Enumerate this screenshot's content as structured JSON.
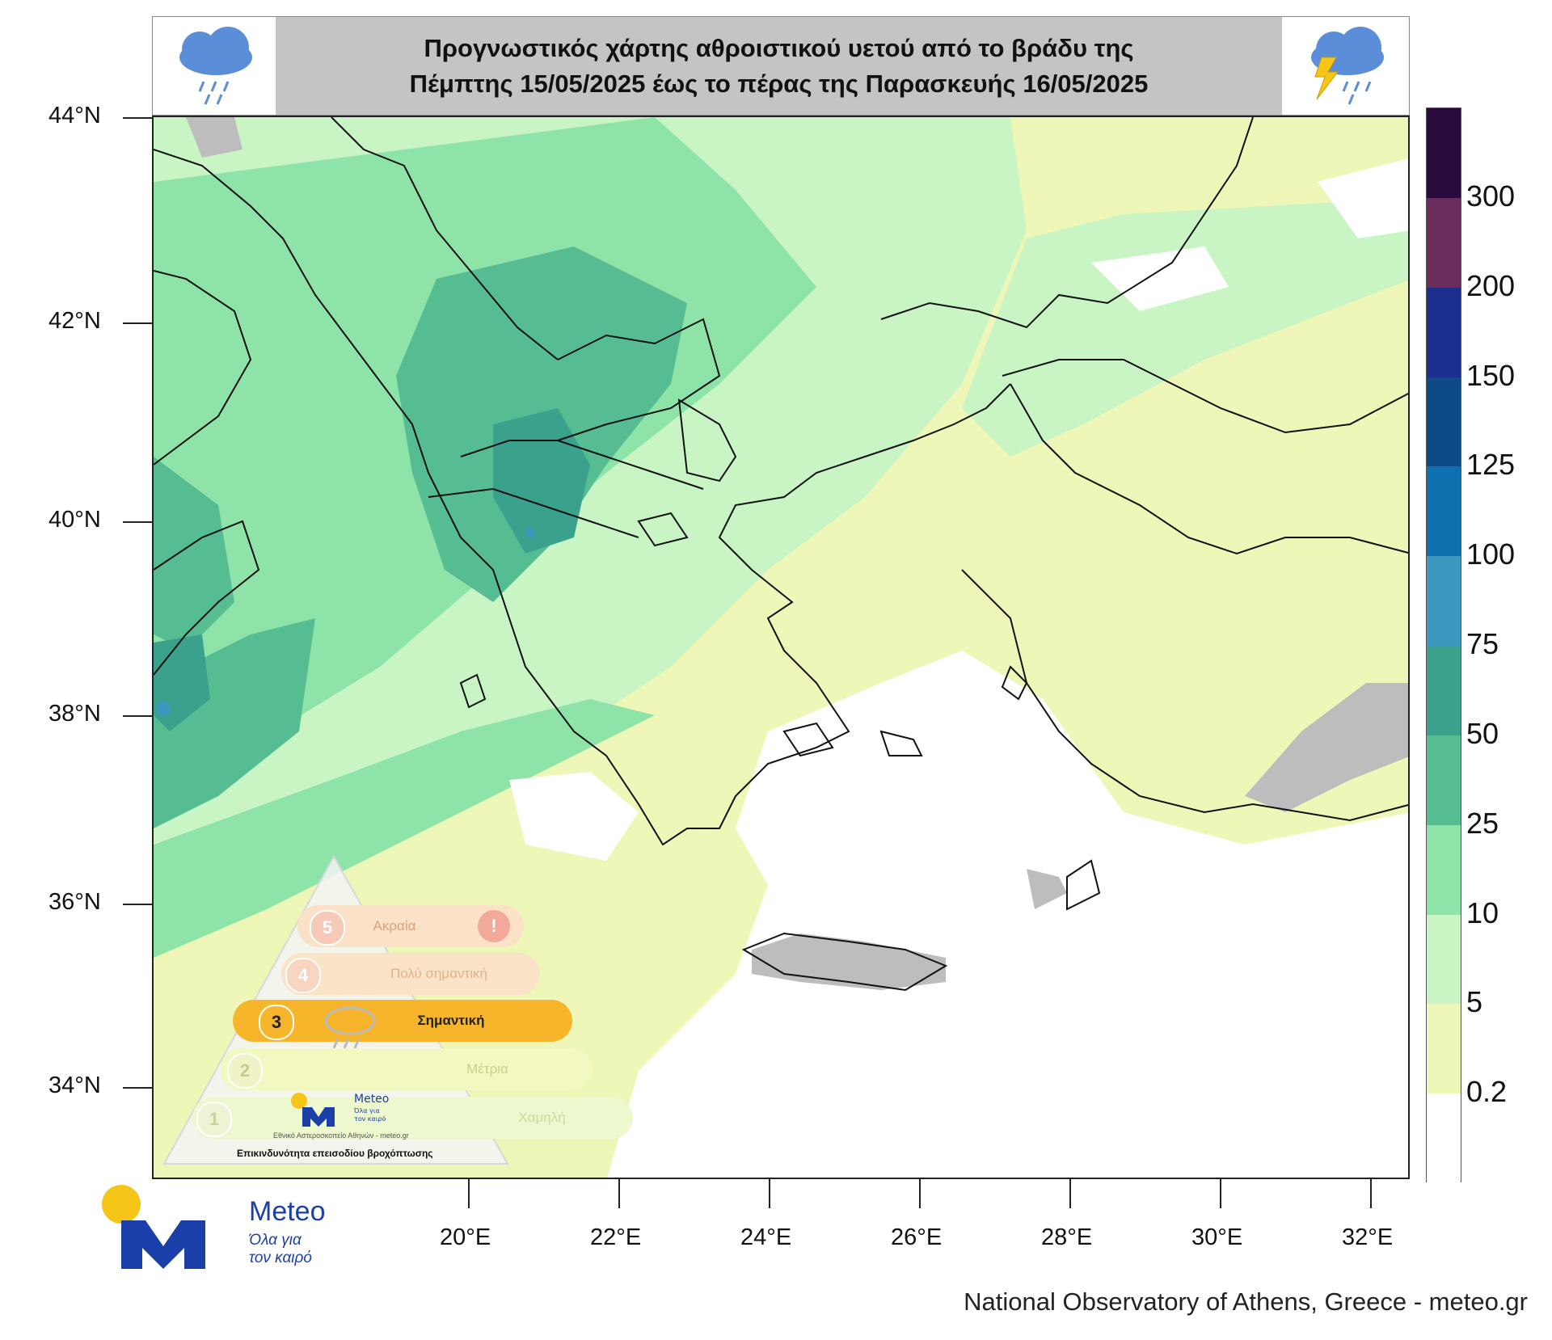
{
  "title": {
    "line1": "Προγνωστικός χάρτης αθροιστικού υετού από το βράδυ της",
    "line2": "Πέμπτης 15/05/2025 έως το πέρας της Παρασκευής 16/05/2025",
    "left_icon": "rain-cloud-icon",
    "right_icon": "thunderstorm-cloud-icon"
  },
  "axes": {
    "lat_labels": [
      "44°N",
      "42°N",
      "40°N",
      "38°N",
      "36°N",
      "34°N"
    ],
    "lon_labels": [
      "20°E",
      "22°E",
      "24°E",
      "26°E",
      "28°E",
      "30°E",
      "32°E"
    ]
  },
  "colorbar": {
    "labels": [
      "300",
      "200",
      "150",
      "125",
      "100",
      "75",
      "50",
      "25",
      "10",
      "5",
      "0.2"
    ],
    "colors": [
      "#2a0a3c",
      "#6a2c5a",
      "#1c2f8f",
      "#0d4a86",
      "#0f70b0",
      "#3b99c0",
      "#3aa28c",
      "#56bd93",
      "#8ee3a8",
      "#c9f5c4",
      "#eef7b8",
      "#ffffff"
    ]
  },
  "warning_scale": {
    "levels": [
      {
        "num": "5",
        "label": "Ακραία",
        "active": false
      },
      {
        "num": "4",
        "label": "Πολύ σημαντική",
        "active": false
      },
      {
        "num": "3",
        "label": "Σημαντική",
        "active": true
      },
      {
        "num": "2",
        "label": "Μέτρια",
        "active": false
      },
      {
        "num": "1",
        "label": "Χαμηλή",
        "active": false
      }
    ],
    "logo_word": "Meteo",
    "logo_sub1": "Όλα για",
    "logo_sub2": "τον καιρό",
    "observatory": "Εθνικό Αστεροσκοπείο Αθηνών - meteo.gr",
    "caption": "Επικινδυνότητα επεισοδίου βροχόπτωσης"
  },
  "brand": {
    "word": "Meteo",
    "sub1": "Όλα για",
    "sub2": "τον καιρό"
  },
  "footer": "National Observatory of Athens, Greece - meteo.gr"
}
